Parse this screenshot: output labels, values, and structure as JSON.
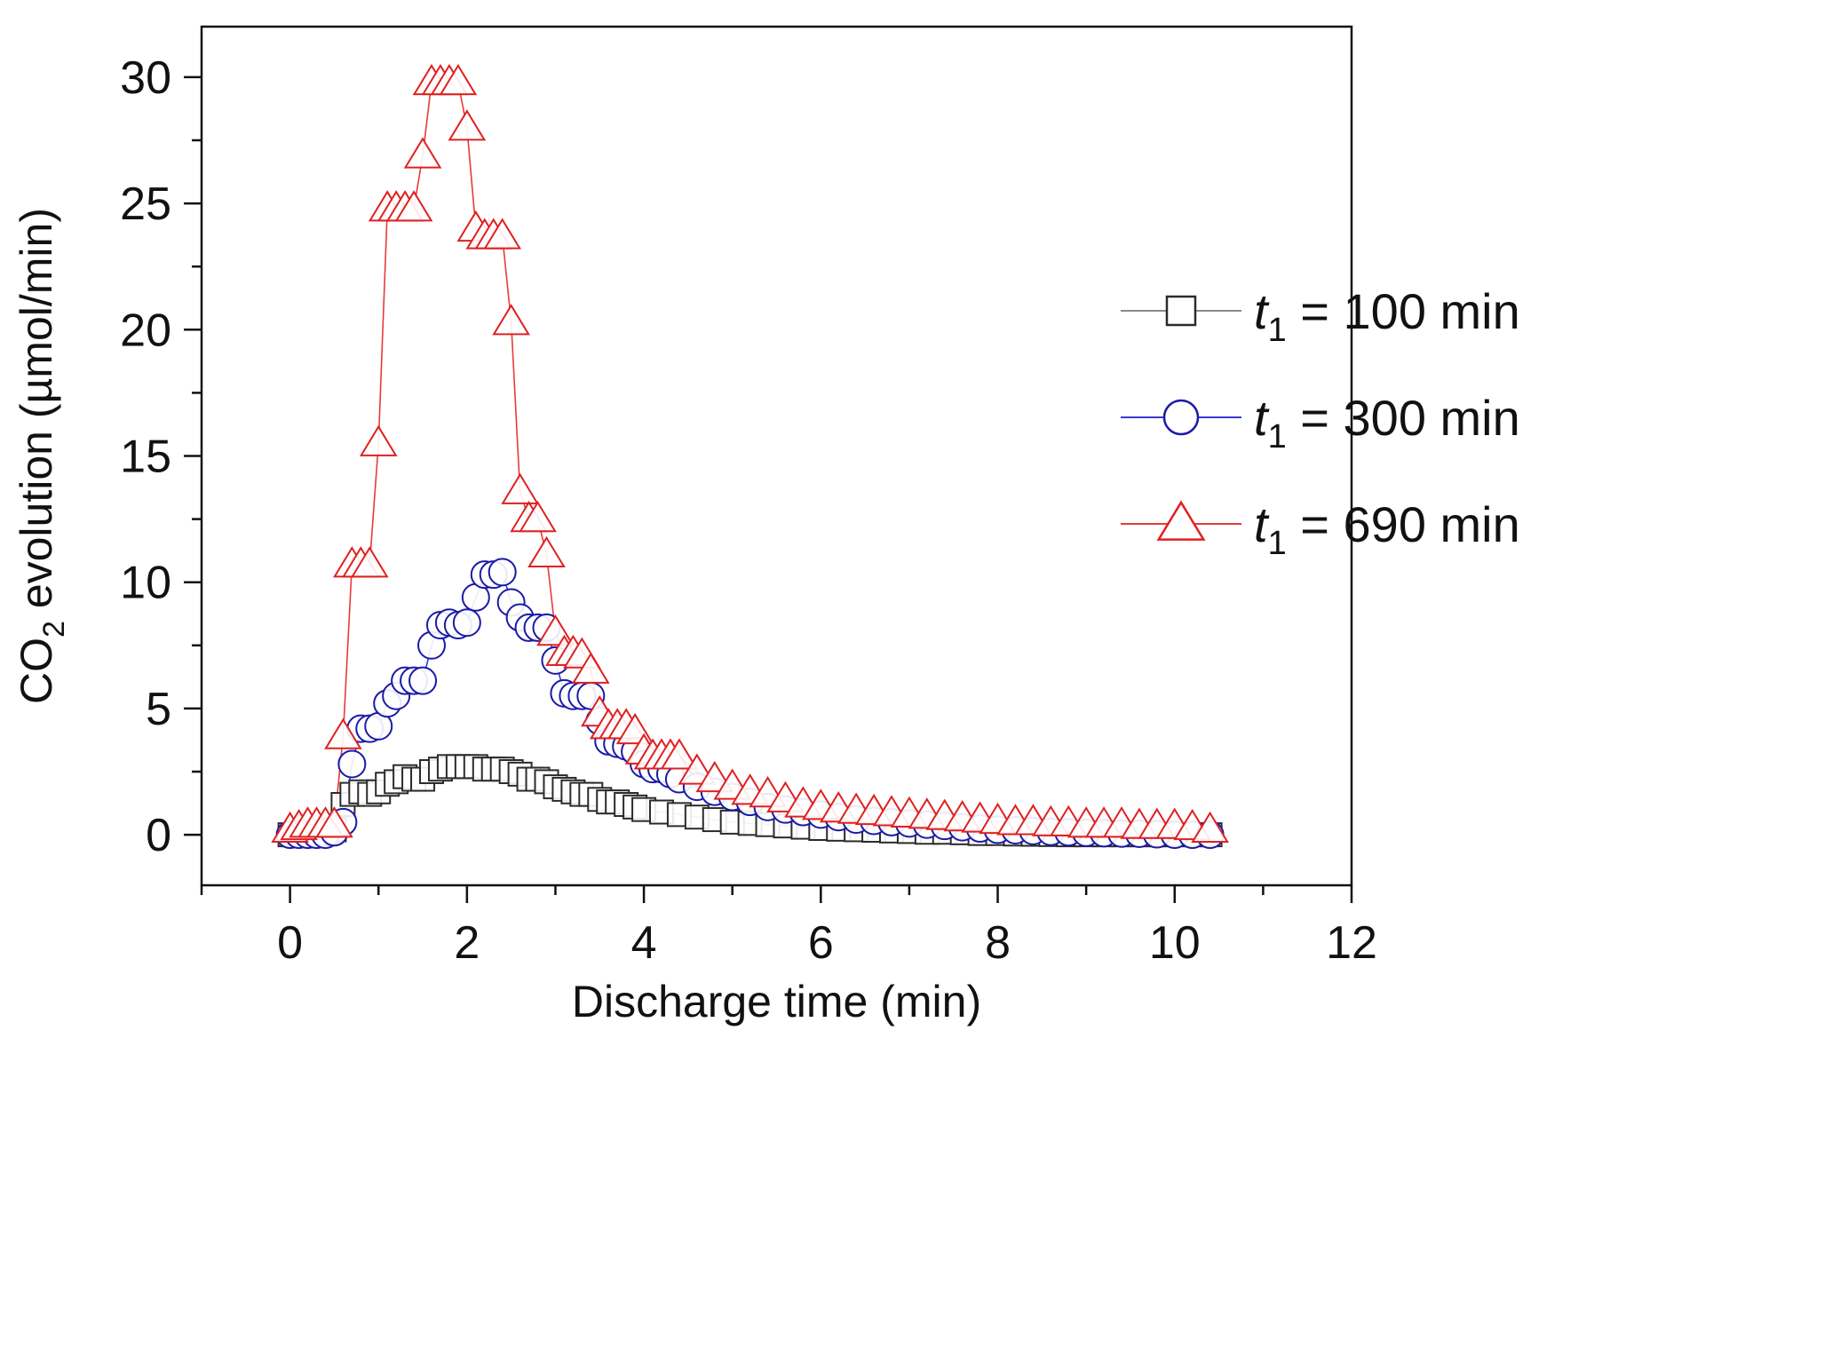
{
  "chart_data": {
    "type": "scatter",
    "title": "",
    "xlabel": "Discharge time (min)",
    "ylabel_main": "CO",
    "ylabel_sub": "2",
    "ylabel_rest": " evolution (µmol/min)",
    "xlim": [
      -1,
      12
    ],
    "ylim": [
      -2,
      32
    ],
    "xticks": [
      0,
      2,
      4,
      6,
      8,
      10,
      12
    ],
    "xtick_labels": [
      "0",
      "2",
      "4",
      "6",
      "8",
      "10",
      "12"
    ],
    "yticks": [
      0,
      5,
      10,
      15,
      20,
      25,
      30
    ],
    "ytick_labels": [
      "0",
      "5",
      "10",
      "15",
      "20",
      "25",
      "30"
    ],
    "legend_position": "top-right",
    "series": [
      {
        "name": "t1 = 100 min",
        "legend_var": "t",
        "legend_sub": "1",
        "legend_rest": " = 100 min",
        "marker": "square",
        "color": "#2b2b2b",
        "line_color": "#8a8a8a",
        "x": [
          0,
          0.1,
          0.2,
          0.3,
          0.4,
          0.5,
          0.6,
          0.7,
          0.8,
          0.9,
          1.0,
          1.1,
          1.2,
          1.3,
          1.4,
          1.5,
          1.6,
          1.7,
          1.8,
          1.9,
          2.0,
          2.1,
          2.2,
          2.3,
          2.4,
          2.5,
          2.6,
          2.7,
          2.8,
          2.9,
          3.0,
          3.1,
          3.2,
          3.3,
          3.4,
          3.5,
          3.6,
          3.7,
          3.8,
          3.9,
          4.0,
          4.2,
          4.4,
          4.6,
          4.8,
          5.0,
          5.2,
          5.4,
          5.6,
          5.8,
          6.0,
          6.2,
          6.4,
          6.6,
          6.8,
          7.0,
          7.2,
          7.4,
          7.6,
          7.8,
          8.0,
          8.2,
          8.4,
          8.6,
          8.8,
          9.0,
          9.2,
          9.4,
          9.6,
          9.8,
          10.0,
          10.2,
          10.4
        ],
        "y": [
          0,
          0,
          0,
          0,
          0.05,
          0.2,
          1.2,
          1.6,
          1.7,
          1.6,
          1.7,
          2.0,
          2.1,
          2.3,
          2.2,
          2.2,
          2.5,
          2.6,
          2.7,
          2.7,
          2.7,
          2.7,
          2.6,
          2.6,
          2.6,
          2.5,
          2.4,
          2.2,
          2.2,
          2.1,
          1.9,
          1.8,
          1.7,
          1.6,
          1.6,
          1.4,
          1.3,
          1.3,
          1.2,
          1.1,
          1.0,
          0.9,
          0.8,
          0.7,
          0.6,
          0.5,
          0.45,
          0.4,
          0.35,
          0.3,
          0.25,
          0.22,
          0.2,
          0.18,
          0.15,
          0.13,
          0.1,
          0.1,
          0.08,
          0.05,
          0.05,
          0.03,
          0.02,
          0.01,
          0,
          0,
          0,
          0,
          0,
          0,
          0,
          0,
          0
        ]
      },
      {
        "name": "t1 = 300 min",
        "legend_var": "t",
        "legend_sub": "1",
        "legend_rest": " = 300 min",
        "marker": "circle",
        "color": "#1a1aa8",
        "line_color": "#3a3ad0",
        "x": [
          0,
          0.1,
          0.2,
          0.3,
          0.4,
          0.5,
          0.6,
          0.7,
          0.8,
          0.9,
          1.0,
          1.1,
          1.2,
          1.3,
          1.4,
          1.5,
          1.6,
          1.7,
          1.8,
          1.9,
          2.0,
          2.1,
          2.2,
          2.3,
          2.4,
          2.5,
          2.6,
          2.7,
          2.8,
          2.9,
          3.0,
          3.1,
          3.2,
          3.3,
          3.4,
          3.5,
          3.6,
          3.7,
          3.8,
          3.9,
          4.0,
          4.1,
          4.2,
          4.3,
          4.4,
          4.6,
          4.8,
          5.0,
          5.2,
          5.4,
          5.6,
          5.8,
          6.0,
          6.2,
          6.4,
          6.6,
          6.8,
          7.0,
          7.2,
          7.4,
          7.6,
          7.8,
          8.0,
          8.2,
          8.4,
          8.6,
          8.8,
          9.0,
          9.2,
          9.4,
          9.6,
          9.8,
          10.0,
          10.2,
          10.4
        ],
        "y": [
          0,
          0,
          0,
          0,
          0,
          0.1,
          0.5,
          2.8,
          4.2,
          4.2,
          4.3,
          5.2,
          5.5,
          6.1,
          6.1,
          6.1,
          7.5,
          8.3,
          8.4,
          8.3,
          8.4,
          9.4,
          10.3,
          10.3,
          10.4,
          9.2,
          8.6,
          8.2,
          8.2,
          8.2,
          6.9,
          5.6,
          5.5,
          5.5,
          5.5,
          4.5,
          3.7,
          3.6,
          3.5,
          3.3,
          2.8,
          2.6,
          2.6,
          2.4,
          2.2,
          1.9,
          1.7,
          1.5,
          1.3,
          1.1,
          1.0,
          0.9,
          0.8,
          0.7,
          0.6,
          0.55,
          0.5,
          0.45,
          0.4,
          0.35,
          0.3,
          0.25,
          0.2,
          0.18,
          0.15,
          0.12,
          0.1,
          0.08,
          0.06,
          0.05,
          0.04,
          0.02,
          0,
          0,
          0
        ]
      },
      {
        "name": "t1 = 690 min",
        "legend_var": "t",
        "legend_sub": "1",
        "legend_rest": " = 690 min",
        "marker": "triangle",
        "color": "#e02020",
        "line_color": "#e83a3a",
        "x": [
          0,
          0.1,
          0.2,
          0.3,
          0.4,
          0.5,
          0.6,
          0.7,
          0.8,
          0.9,
          1.0,
          1.1,
          1.2,
          1.3,
          1.4,
          1.5,
          1.6,
          1.7,
          1.8,
          1.9,
          2.0,
          2.1,
          2.2,
          2.3,
          2.4,
          2.5,
          2.6,
          2.7,
          2.8,
          2.9,
          3.0,
          3.1,
          3.2,
          3.3,
          3.4,
          3.5,
          3.6,
          3.7,
          3.8,
          3.9,
          4.0,
          4.1,
          4.2,
          4.3,
          4.4,
          4.6,
          4.8,
          5.0,
          5.2,
          5.4,
          5.6,
          5.8,
          6.0,
          6.2,
          6.4,
          6.6,
          6.8,
          7.0,
          7.2,
          7.4,
          7.6,
          7.8,
          8.0,
          8.2,
          8.4,
          8.6,
          8.8,
          9.0,
          9.2,
          9.4,
          9.6,
          9.8,
          10.0,
          10.2,
          10.4
        ],
        "y": [
          0.2,
          0.3,
          0.4,
          0.4,
          0.4,
          0.4,
          3.9,
          10.7,
          10.7,
          10.7,
          15.5,
          24.8,
          24.8,
          24.8,
          24.8,
          26.9,
          29.8,
          29.8,
          29.8,
          29.8,
          28.0,
          24.0,
          23.7,
          23.7,
          23.7,
          20.3,
          13.6,
          12.5,
          12.5,
          11.1,
          8.0,
          7.2,
          7.2,
          7.1,
          6.5,
          4.8,
          4.3,
          4.3,
          4.3,
          4.1,
          3.3,
          3.1,
          3.1,
          3.1,
          3.1,
          2.5,
          2.2,
          1.9,
          1.7,
          1.6,
          1.4,
          1.2,
          1.1,
          1.0,
          0.95,
          0.9,
          0.85,
          0.8,
          0.75,
          0.7,
          0.65,
          0.6,
          0.55,
          0.5,
          0.5,
          0.45,
          0.45,
          0.4,
          0.4,
          0.4,
          0.35,
          0.35,
          0.35,
          0.3,
          0.2
        ]
      }
    ]
  }
}
